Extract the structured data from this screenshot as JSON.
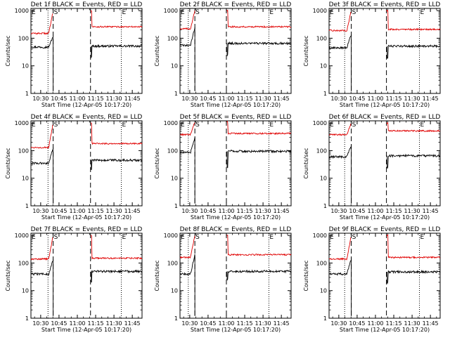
{
  "figure": {
    "xlabel": "Start Time (12-Apr-05 10:17:20)",
    "ylabel": "Counts/sec",
    "xticks": [
      "10:30",
      "10:45",
      "11:00",
      "11:15",
      "11:30",
      "11:45"
    ],
    "yticks": [
      "1",
      "10",
      "100",
      "1000"
    ],
    "marker_labels": [
      "E",
      "S",
      "E"
    ]
  },
  "colors": {
    "events": "#000000",
    "lld": "#e00000",
    "axes": "#000000"
  },
  "chart_data": [
    {
      "type": "line",
      "title": "Det 1f BLACK = Events, RED = LLD",
      "ylog": true,
      "ylim": [
        1,
        1200
      ],
      "xlim": [
        10.367,
        11.883
      ],
      "x_unit": "hours (10:22-11:53)",
      "markers": {
        "dotted": [
          10.6,
          11.6
        ],
        "dashed": [
          10.67,
          11.18
        ]
      },
      "series": [
        {
          "name": "Events",
          "color": "#000000",
          "baseline_before": 48,
          "baseline_after": 52,
          "pre_peak": 120,
          "post_dip": 20
        },
        {
          "name": "LLD",
          "color": "#e00000",
          "baseline_before": 150,
          "baseline_after": 260,
          "pre_peak": 1000,
          "post_dip": 600
        }
      ]
    },
    {
      "type": "line",
      "title": "Det 2f BLACK = Events, RED = LLD",
      "ylog": true,
      "ylim": [
        1,
        1200
      ],
      "xlim": [
        10.367,
        11.883
      ],
      "x_unit": "hours (10:22-11:53)",
      "markers": {
        "dotted": [
          10.48,
          11.58
        ],
        "dashed": [
          10.57,
          11.0
        ]
      },
      "series": [
        {
          "name": "Events",
          "color": "#000000",
          "baseline_before": 55,
          "baseline_after": 65,
          "pre_peak": 250,
          "post_dip": 25
        },
        {
          "name": "LLD",
          "color": "#e00000",
          "baseline_before": 220,
          "baseline_after": 260,
          "pre_peak": 1000,
          "post_dip": 700
        }
      ]
    },
    {
      "type": "line",
      "title": "Det 3f BLACK = Events, RED = LLD",
      "ylog": true,
      "ylim": [
        1,
        1200
      ],
      "xlim": [
        10.367,
        11.883
      ],
      "x_unit": "hours (10:22-11:53)",
      "markers": {
        "dotted": [
          10.58,
          11.6
        ],
        "dashed": [
          10.67,
          11.15
        ]
      },
      "series": [
        {
          "name": "Events",
          "color": "#000000",
          "baseline_before": 45,
          "baseline_after": 52,
          "pre_peak": 140,
          "post_dip": 20
        },
        {
          "name": "LLD",
          "color": "#e00000",
          "baseline_before": 190,
          "baseline_after": 210,
          "pre_peak": 1000,
          "post_dip": 500
        }
      ]
    },
    {
      "type": "line",
      "title": "Det 4f BLACK = Events, RED = LLD",
      "ylog": true,
      "ylim": [
        1,
        1200
      ],
      "xlim": [
        10.367,
        11.883
      ],
      "x_unit": "hours (10:22-11:53)",
      "markers": {
        "dotted": [
          10.6,
          11.6
        ],
        "dashed": [
          10.67,
          11.18
        ]
      },
      "series": [
        {
          "name": "Events",
          "color": "#000000",
          "baseline_before": 35,
          "baseline_after": 45,
          "pre_peak": 130,
          "post_dip": 20
        },
        {
          "name": "LLD",
          "color": "#e00000",
          "baseline_before": 130,
          "baseline_after": 180,
          "pre_peak": 1000,
          "post_dip": 550
        }
      ]
    },
    {
      "type": "line",
      "title": "Det 5f BLACK = Events, RED = LLD",
      "ylog": true,
      "ylim": [
        1,
        1200
      ],
      "xlim": [
        10.367,
        11.883
      ],
      "x_unit": "hours (10:22-11:53)",
      "markers": {
        "dotted": [
          10.48,
          11.58
        ],
        "dashed": [
          10.57,
          11.0
        ]
      },
      "series": [
        {
          "name": "Events",
          "color": "#000000",
          "baseline_before": 85,
          "baseline_after": 95,
          "pre_peak": 300,
          "post_dip": 25
        },
        {
          "name": "LLD",
          "color": "#e00000",
          "baseline_before": 380,
          "baseline_after": 420,
          "pre_peak": 1100,
          "post_dip": 1100
        }
      ]
    },
    {
      "type": "line",
      "title": "Det 6f BLACK = Events, RED = LLD",
      "ylog": true,
      "ylim": [
        1,
        1200
      ],
      "xlim": [
        10.367,
        11.883
      ],
      "x_unit": "hours (10:22-11:53)",
      "markers": {
        "dotted": [
          10.58,
          11.6
        ],
        "dashed": [
          10.67,
          11.15
        ]
      },
      "series": [
        {
          "name": "Events",
          "color": "#000000",
          "baseline_before": 60,
          "baseline_after": 65,
          "pre_peak": 160,
          "post_dip": 25
        },
        {
          "name": "LLD",
          "color": "#e00000",
          "baseline_before": 380,
          "baseline_after": 520,
          "pre_peak": 1000,
          "post_dip": 700
        }
      ]
    },
    {
      "type": "line",
      "title": "Det 7f BLACK = Events, RED = LLD",
      "ylog": true,
      "ylim": [
        1,
        1200
      ],
      "xlim": [
        10.367,
        11.883
      ],
      "x_unit": "hours (10:22-11:53)",
      "markers": {
        "dotted": [
          10.6,
          11.6
        ],
        "dashed": [
          10.67,
          11.18
        ]
      },
      "series": [
        {
          "name": "Events",
          "color": "#000000",
          "baseline_before": 40,
          "baseline_after": 50,
          "pre_peak": 140,
          "post_dip": 20
        },
        {
          "name": "LLD",
          "color": "#e00000",
          "baseline_before": 140,
          "baseline_after": 150,
          "pre_peak": 1000,
          "post_dip": 500
        }
      ]
    },
    {
      "type": "line",
      "title": "Det 8f BLACK = Events, RED = LLD",
      "ylog": true,
      "ylim": [
        1,
        1200
      ],
      "xlim": [
        10.367,
        11.883
      ],
      "x_unit": "hours (10:22-11:53)",
      "markers": {
        "dotted": [
          10.48,
          11.58
        ],
        "dashed": [
          10.57,
          11.0
        ]
      },
      "series": [
        {
          "name": "Events",
          "color": "#000000",
          "baseline_before": 40,
          "baseline_after": 50,
          "pre_peak": 200,
          "post_dip": 25
        },
        {
          "name": "LLD",
          "color": "#e00000",
          "baseline_before": 160,
          "baseline_after": 200,
          "pre_peak": 1000,
          "post_dip": 700
        }
      ]
    },
    {
      "type": "line",
      "title": "Det 9f BLACK = Events, RED = LLD",
      "ylog": true,
      "ylim": [
        1,
        1200
      ],
      "xlim": [
        10.367,
        11.883
      ],
      "x_unit": "hours (10:22-11:53)",
      "markers": {
        "dotted": [
          10.58,
          11.6
        ],
        "dashed": [
          10.67,
          11.15
        ]
      },
      "series": [
        {
          "name": "Events",
          "color": "#000000",
          "baseline_before": 40,
          "baseline_after": 48,
          "pre_peak": 150,
          "post_dip": 20
        },
        {
          "name": "LLD",
          "color": "#e00000",
          "baseline_before": 140,
          "baseline_after": 160,
          "pre_peak": 1000,
          "post_dip": 550
        }
      ]
    }
  ]
}
